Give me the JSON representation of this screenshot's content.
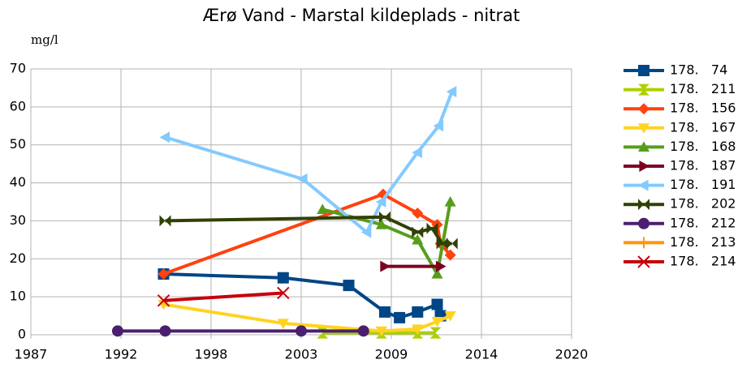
{
  "chart_data": {
    "type": "line",
    "title": "Ærø Vand - Marstal kildeplads - nitrat",
    "ylabel": "mg/l",
    "xlim": [
      1987,
      2020
    ],
    "xticks": [
      1987,
      {
        "value": 1992.5,
        "label": "1992"
      },
      1998,
      {
        "value": 2003.5,
        "label": "2003"
      },
      2009,
      {
        "value": 2014.5,
        "label": "2014"
      },
      2020
    ],
    "ylim": [
      0,
      70
    ],
    "yticks": [
      0,
      10,
      20,
      30,
      40,
      50,
      60,
      70
    ],
    "grid": true,
    "legend": "right",
    "series": [
      {
        "name": "178.   74",
        "color": "#004586",
        "marker": "square",
        "x": [
          1995.1,
          2002.4,
          2006.4,
          2008.6,
          2009.5,
          2010.6,
          2011.8,
          2012.0
        ],
        "values": [
          16,
          15,
          13,
          6,
          4.5,
          6,
          8,
          5
        ]
      },
      {
        "name": "178.   211",
        "color": "#aecf00",
        "marker": "hourglass",
        "x": [
          2004.8,
          2008.4,
          2010.6,
          2011.7
        ],
        "values": [
          0.5,
          0.5,
          0.5,
          0.5
        ]
      },
      {
        "name": "178.   156",
        "color": "#ff420e",
        "marker": "diamond",
        "x": [
          1995.1,
          2008.5,
          2010.6,
          2011.8,
          2012.0,
          2012.6
        ],
        "values": [
          16,
          37,
          32,
          29,
          24,
          21
        ]
      },
      {
        "name": "178.   167",
        "color": "#ffd320",
        "marker": "down",
        "x": [
          1995.1,
          2002.4,
          2008.4,
          2010.6,
          2011.8,
          2012.6
        ],
        "values": [
          8,
          3,
          1,
          1.5,
          3.5,
          5
        ]
      },
      {
        "name": "178.   168",
        "color": "#579d1c",
        "marker": "up",
        "x": [
          2004.8,
          2008.4,
          2010.6,
          2011.8,
          2012.6
        ],
        "values": [
          33,
          29,
          25,
          16,
          35
        ]
      },
      {
        "name": "178.   187",
        "color": "#7e0021",
        "marker": "right",
        "x": [
          2008.6,
          2012.0
        ],
        "values": [
          18,
          18
        ]
      },
      {
        "name": "178.   191",
        "color": "#83caff",
        "marker": "left",
        "x": [
          1995.2,
          2003.6,
          2007.5,
          2008.4,
          2010.6,
          2011.9,
          2012.7
        ],
        "values": [
          52,
          41,
          27,
          35,
          48,
          55,
          64
        ]
      },
      {
        "name": "178.   202",
        "color": "#314004",
        "marker": "bowtie",
        "x": [
          1995.2,
          2008.6,
          2010.6,
          2011.5,
          2012.1,
          2012.7
        ],
        "values": [
          30,
          31,
          27,
          28,
          24,
          24
        ]
      },
      {
        "name": "178.   212",
        "color": "#4b1f6f",
        "marker": "circle",
        "x": [
          1992.3,
          1995.2,
          2003.5,
          2007.3
        ],
        "values": [
          1,
          1,
          1,
          1
        ]
      },
      {
        "name": "178.   213",
        "color": "#ff950e",
        "marker": "plus",
        "x": [],
        "values": []
      },
      {
        "name": "178.   214",
        "color": "#c5000b",
        "marker": "cross",
        "x": [
          1995.1,
          2002.4
        ],
        "values": [
          9,
          11
        ]
      }
    ]
  }
}
